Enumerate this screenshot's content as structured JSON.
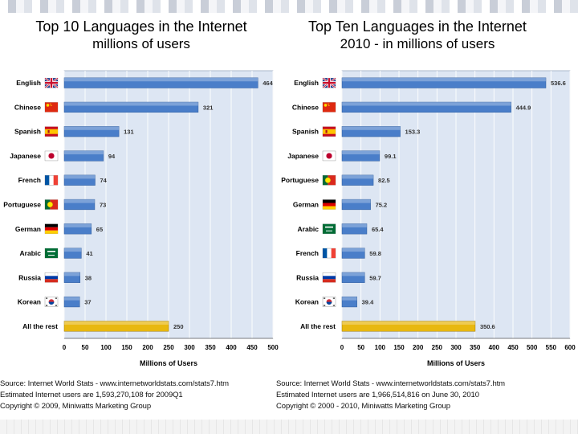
{
  "left": {
    "title": "Top 10 Languages in the Internet",
    "subtitle": "millions of users",
    "source_lines": [
      "Source: Internet World Stats - www.internetworldstats.com/stats7.htm",
      "Estimated Internet users are 1,593,270,108 for 2009Q1",
      "Copyright © 2009, Miniwatts Marketing Group"
    ]
  },
  "right": {
    "title": "Top Ten Languages in the Internet",
    "subtitle": "2010 - in millions of users",
    "source_lines": [
      "Source: Internet World Stats - www.internetworldstats.com/stats7.htm",
      "Estimated Internet users are 1,966,514,816 on June 30, 2010",
      "Copyright © 2000 - 2010, Miniwatts Marketing Group"
    ]
  },
  "chart_data": [
    {
      "type": "bar",
      "orientation": "horizontal",
      "title": "Top 10 Languages in the Internet",
      "subtitle": "millions of users",
      "xlabel": "Millions of Users",
      "xlim": [
        0,
        500
      ],
      "xticks": [
        0,
        50,
        100,
        150,
        200,
        250,
        300,
        350,
        400,
        450,
        500
      ],
      "xtick_labels": [
        "0",
        "50",
        "100",
        "150",
        "200",
        "250",
        "300",
        "350",
        "400",
        "450",
        "500"
      ],
      "grid": true,
      "categories": [
        "English",
        "Chinese",
        "Spanish",
        "Japanese",
        "French",
        "Portuguese",
        "German",
        "Arabic",
        "Russia",
        "Korean",
        "All the rest"
      ],
      "values": [
        464,
        321,
        131,
        94,
        74,
        73,
        65,
        41,
        38,
        37,
        250
      ],
      "value_labels": [
        "464",
        "321",
        "131",
        "94",
        "74",
        "73",
        "65",
        "41",
        "38",
        "37",
        "250"
      ],
      "flags": [
        "gb",
        "cn",
        "es",
        "jp",
        "fr",
        "pt",
        "de",
        "sa",
        "ru",
        "kr",
        ""
      ],
      "bar_color": "#4a7ec9",
      "highlight_color": "#e8b810",
      "highlight_category": "All the rest"
    },
    {
      "type": "bar",
      "orientation": "horizontal",
      "title": "Top Ten Languages in the Internet",
      "subtitle": "2010 - in millions of users",
      "xlabel": "Millions of Users",
      "xlim": [
        0,
        600
      ],
      "xticks": [
        0,
        50,
        100,
        150,
        200,
        250,
        300,
        350,
        400,
        450,
        500,
        550,
        600
      ],
      "xtick_labels": [
        "0",
        "50",
        "100",
        "150",
        "200",
        "250",
        "300",
        "350",
        "400",
        "450",
        "500",
        "550",
        "600"
      ],
      "grid": true,
      "categories": [
        "English",
        "Chinese",
        "Spanish",
        "Japanese",
        "Portuguese",
        "German",
        "Arabic",
        "French",
        "Russia",
        "Korean",
        "All the rest"
      ],
      "values": [
        536.6,
        444.9,
        153.3,
        99.1,
        82.5,
        75.2,
        65.4,
        59.8,
        59.7,
        39.4,
        350.6
      ],
      "value_labels": [
        "536.6",
        "444.9",
        "153.3",
        "99.1",
        "82.5",
        "75.2",
        "65.4",
        "59.8",
        "59.7",
        "39.4",
        "350.6"
      ],
      "flags": [
        "gb",
        "cn",
        "es",
        "jp",
        "pt",
        "de",
        "sa",
        "fr",
        "ru",
        "kr",
        ""
      ],
      "bar_color": "#4a7ec9",
      "highlight_color": "#e8b810",
      "highlight_category": "All the rest"
    }
  ]
}
